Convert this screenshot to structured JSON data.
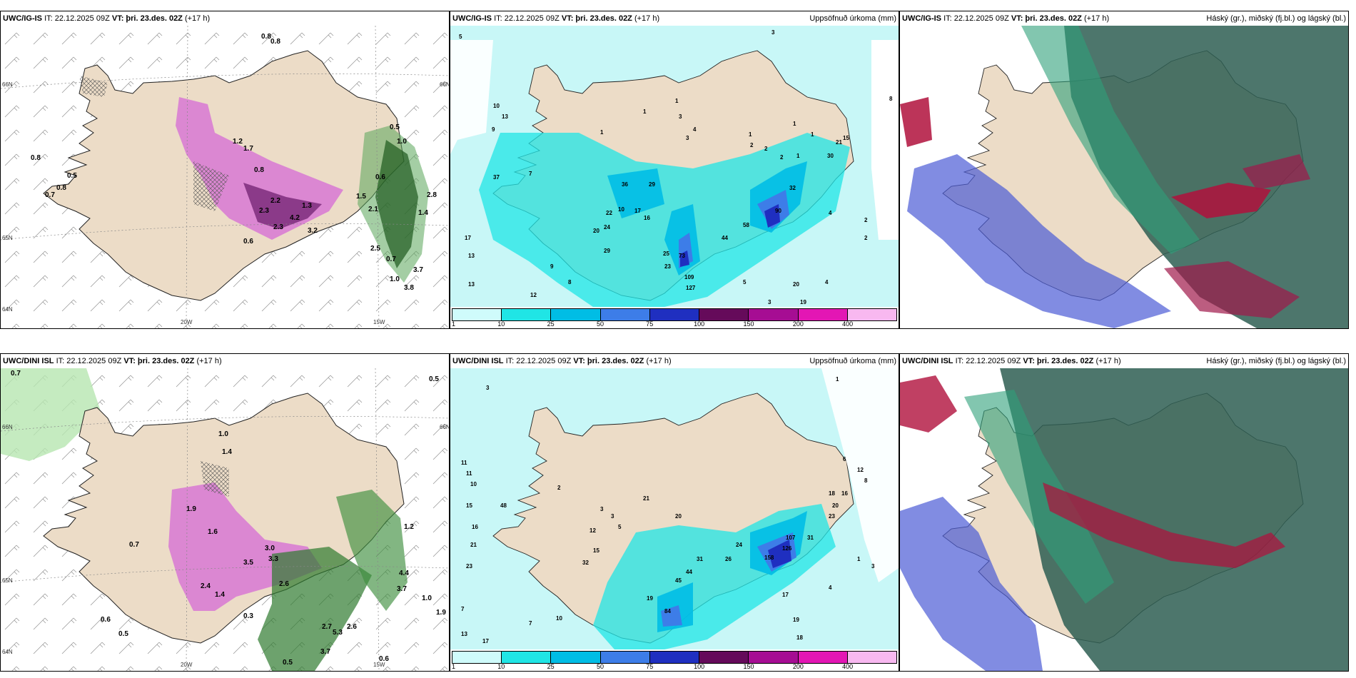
{
  "panels": [
    {
      "model": "UWC/IG-IS",
      "it": "IT: 22.12.2025 09Z",
      "vt_label": "VT:",
      "vt": "þri. 23.des. 02Z",
      "lead": "(+17 h)",
      "right": ""
    },
    {
      "model": "UWC/IG-IS",
      "it": "IT: 22.12.2025 09Z",
      "vt_label": "VT:",
      "vt": "þri. 23.des. 02Z",
      "lead": "(+17 h)",
      "right": "Uppsöfnuð úrkoma (mm)"
    },
    {
      "model": "UWC/IG-IS",
      "it": "IT: 22.12.2025 09Z",
      "vt_label": "VT:",
      "vt": "þri. 23.des. 02Z",
      "lead": "(+17 h)",
      "right": "Háský (gr.), miðský (fj.bl.) og lágský (bl.)"
    },
    {
      "model": "UWC/DINI ISL",
      "it": "IT: 22.12.2025 09Z",
      "vt_label": "VT:",
      "vt": "þri. 23.des. 02Z",
      "lead": "(+17 h)",
      "right": ""
    },
    {
      "model": "UWC/DINI ISL",
      "it": "IT: 22.12.2025 09Z",
      "vt_label": "VT:",
      "vt": "þri. 23.des. 02Z",
      "lead": "(+17 h)",
      "right": "Uppsöfnuð úrkoma (mm)"
    },
    {
      "model": "UWC/DINI ISL",
      "it": "IT: 22.12.2025 09Z",
      "vt_label": "VT:",
      "vt": "þri. 23.des. 02Z",
      "lead": "(+17 h)",
      "right": "Háský (gr.), miðský (fj.bl.) og lágský (bl.)"
    }
  ],
  "grid_labels": {
    "lon1": "20W",
    "lon2": "15W",
    "lat1": "66N",
    "lat2": "65N",
    "lat3": "64N",
    "lat_right": "66N"
  },
  "colorbar": {
    "labels": [
      "1",
      "10",
      "25",
      "50",
      "75",
      "100",
      "150",
      "200",
      "400"
    ],
    "colors": [
      "#cffbfb",
      "#20e5e5",
      "#00bde5",
      "#3d7de8",
      "#1f2fc0",
      "#650a5a",
      "#a60d93",
      "#e316b4",
      "#f8b8f0"
    ]
  },
  "snow_values_top": [
    "0.8",
    "0.8",
    "0.8",
    "0.5",
    "0.7",
    "0.8",
    "1.2",
    "1.7",
    "0.8",
    "2.2",
    "2.3",
    "2.3",
    "4.2",
    "3.2",
    "1.3",
    "0.6",
    "1.5",
    "1.0",
    "0.5",
    "0.6",
    "2.1",
    "1.4",
    "2.8",
    "0.7",
    "1.0",
    "3.7",
    "3.8",
    "2.5"
  ],
  "precip_values_top": [
    "5",
    "3",
    "8",
    "10",
    "13",
    "9",
    "1",
    "3",
    "1",
    "1",
    "3",
    "4",
    "2",
    "1",
    "1",
    "2",
    "2",
    "1",
    "1",
    "30",
    "21",
    "15",
    "7",
    "37",
    "36",
    "29",
    "32",
    "22",
    "24",
    "10",
    "17",
    "16",
    "20",
    "29",
    "44",
    "58",
    "90",
    "4",
    "2",
    "2",
    "17",
    "13",
    "13",
    "12",
    "9",
    "8",
    "73",
    "23",
    "109",
    "127",
    "25",
    "20",
    "19",
    "5",
    "4",
    "3"
  ],
  "snow_values_bottom": [
    "0.7",
    "0.6",
    "0.5",
    "0.7",
    "1.9",
    "1.6",
    "1.0",
    "1.4",
    "2.4",
    "1.4",
    "2.6",
    "3.0",
    "3.5",
    "3.3",
    "0.3",
    "3.7",
    "0.5",
    "0.5",
    "1.0",
    "1.9",
    "2.7",
    "5.3",
    "2.6",
    "1.2",
    "3.7",
    "4.4",
    "0.6"
  ],
  "precip_values_bottom": [
    "3",
    "1",
    "11",
    "11",
    "10",
    "15",
    "16",
    "21",
    "23",
    "7",
    "13",
    "17",
    "48",
    "2",
    "3",
    "3",
    "5",
    "12",
    "15",
    "32",
    "10",
    "7",
    "21",
    "20",
    "24",
    "26",
    "31",
    "44",
    "45",
    "84",
    "19",
    "107",
    "126",
    "158",
    "31",
    "23",
    "20",
    "18",
    "16",
    "12",
    "8",
    "6",
    "3",
    "1",
    "4",
    "17",
    "18",
    "19"
  ]
}
